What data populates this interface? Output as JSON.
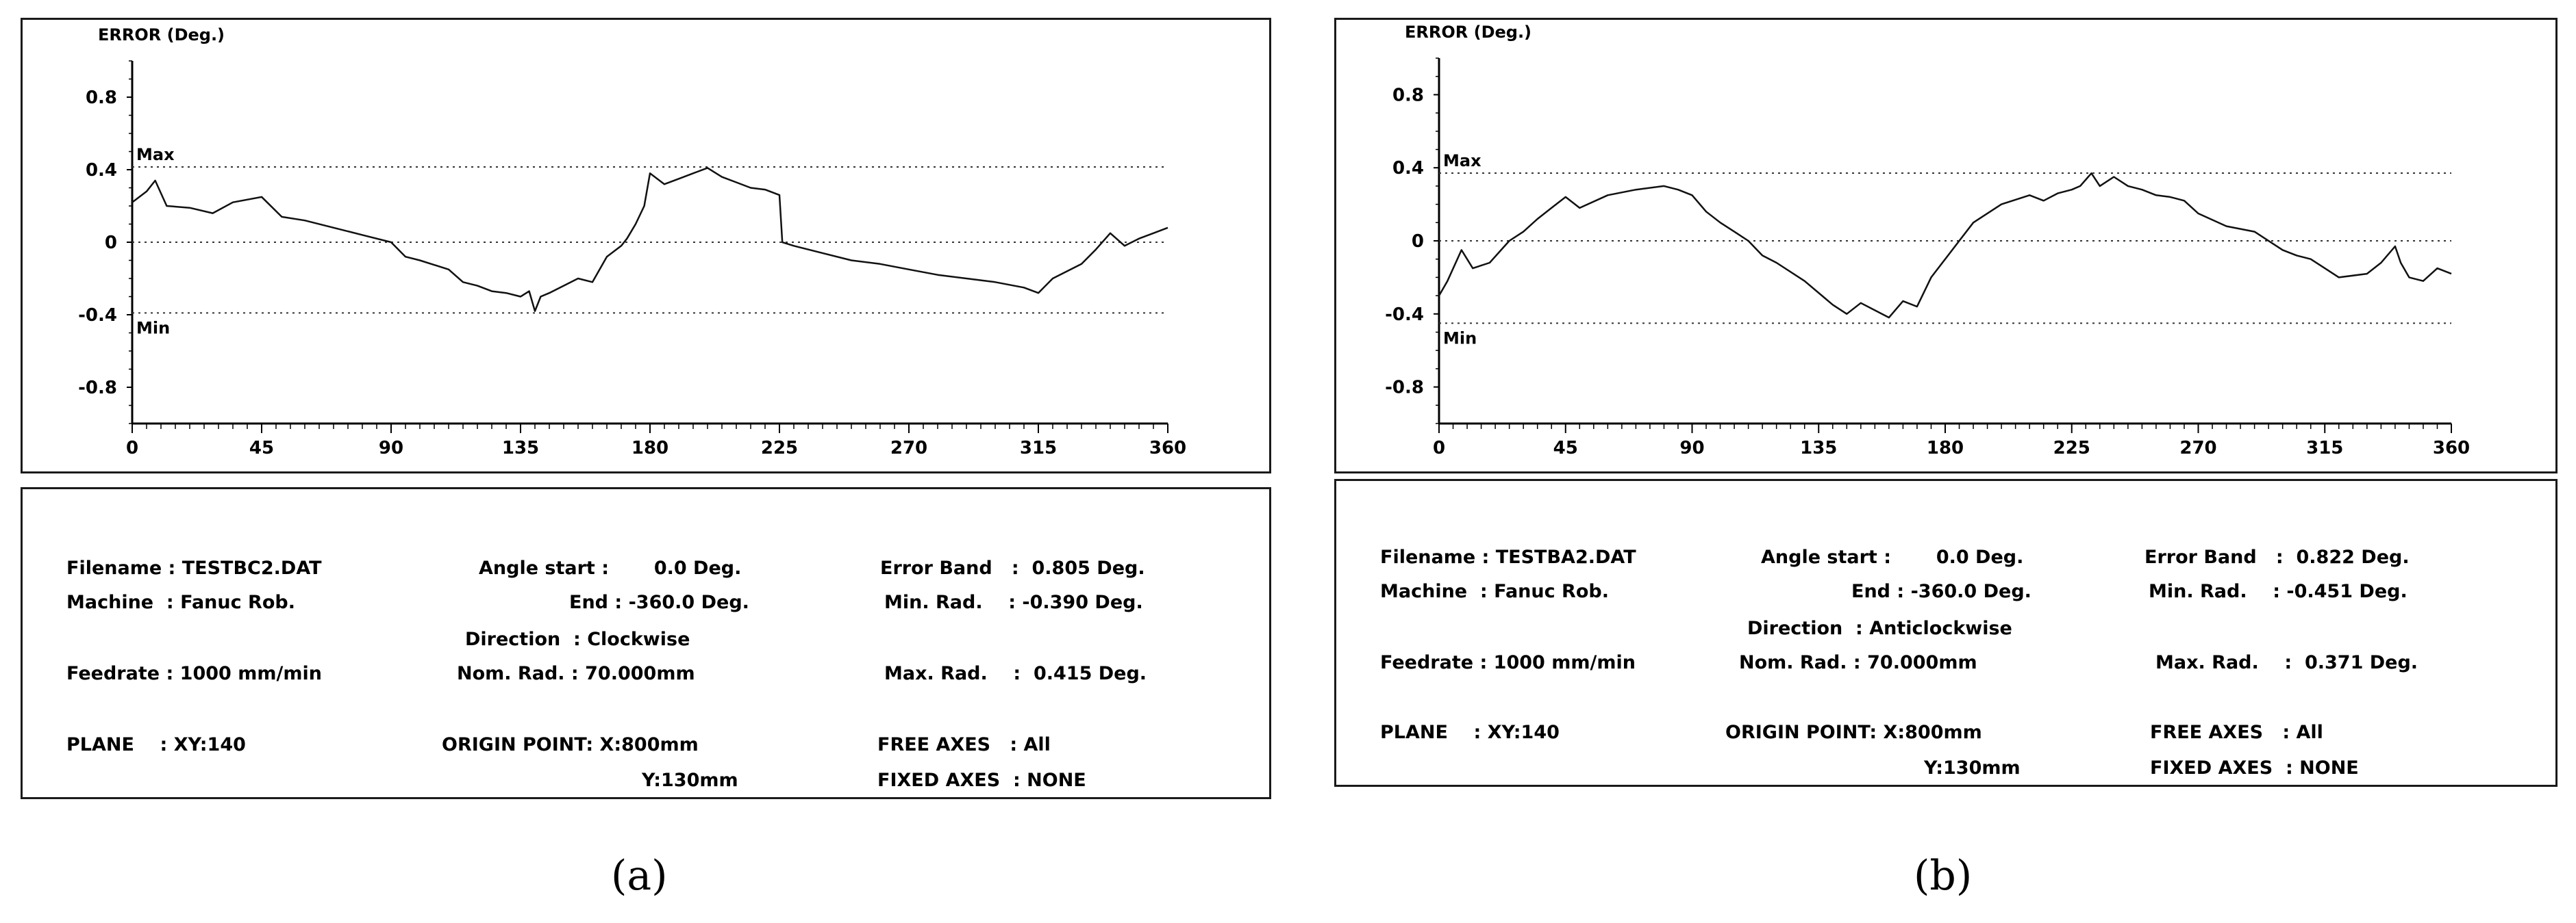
{
  "panels": [
    {
      "caption": "(a)",
      "chart_data": {
        "type": "line",
        "ylabel": "ERROR (Deg.)",
        "xlabel": "",
        "xlim": [
          0,
          360
        ],
        "ylim": [
          -1.0,
          1.0
        ],
        "yticks": [
          "0.8",
          "0.4",
          "0",
          "-0.4",
          "-0.8"
        ],
        "xticks": [
          "0",
          "45",
          "90",
          "135",
          "180",
          "225",
          "270",
          "315",
          "360"
        ],
        "max_label": "Max",
        "min_label": "Min",
        "max_line": 0.415,
        "min_line": -0.39,
        "series": [
          {
            "x": [
              0,
              5,
              8,
              12,
              20,
              28,
              35,
              45,
              52,
              60,
              70,
              80,
              90,
              95,
              100,
              110,
              115,
              120,
              125,
              130,
              135,
              138,
              140,
              142,
              145,
              150,
              155,
              160,
              165,
              170,
              172,
              175,
              178,
              180,
              185,
              190,
              195,
              200,
              205,
              210,
              215,
              220,
              225,
              226,
              230,
              240,
              250,
              260,
              270,
              280,
              290,
              300,
              310,
              315,
              320,
              330,
              335,
              340,
              345,
              350,
              355,
              360
            ],
            "y": [
              0.22,
              0.28,
              0.34,
              0.2,
              0.19,
              0.16,
              0.22,
              0.25,
              0.14,
              0.12,
              0.08,
              0.04,
              0.0,
              -0.08,
              -0.1,
              -0.15,
              -0.22,
              -0.24,
              -0.27,
              -0.28,
              -0.3,
              -0.27,
              -0.38,
              -0.3,
              -0.28,
              -0.24,
              -0.2,
              -0.22,
              -0.08,
              -0.02,
              0.02,
              0.1,
              0.2,
              0.38,
              0.32,
              0.35,
              0.38,
              0.41,
              0.36,
              0.33,
              0.3,
              0.29,
              0.26,
              0.0,
              -0.02,
              -0.06,
              -0.1,
              -0.12,
              -0.15,
              -0.18,
              -0.2,
              -0.22,
              -0.25,
              -0.28,
              -0.2,
              -0.12,
              -0.04,
              0.05,
              -0.02,
              0.02,
              0.05,
              0.08
            ]
          }
        ]
      },
      "info": {
        "filename": "Filename : TESTBC2.DAT",
        "machine": "Machine  : Fanuc Rob.",
        "feedrate": "Feedrate : 1000 mm/min",
        "plane": "PLANE    : XY:140",
        "angle_start": "Angle start :       0.0 Deg.",
        "end": "End : -360.0 Deg.",
        "direction": "Direction  : Clockwise",
        "nom_rad": "Nom. Rad. : 70.000mm",
        "origin_point": "ORIGIN POINT: X:800mm",
        "origin_y": "Y:130mm",
        "error_band": "Error Band   :  0.805 Deg.",
        "min_rad": "Min. Rad.    : -0.390 Deg.",
        "max_rad": "Max. Rad.    :  0.415 Deg.",
        "free_axes": "FREE AXES   : All",
        "fixed_axes": "FIXED AXES  : NONE"
      }
    },
    {
      "caption": "(b)",
      "chart_data": {
        "type": "line",
        "ylabel": "ERROR (Deg.)",
        "xlabel": "",
        "xlim": [
          0,
          360
        ],
        "ylim": [
          -1.0,
          1.0
        ],
        "yticks": [
          "0.8",
          "0.4",
          "0",
          "-0.4",
          "-0.8"
        ],
        "xticks": [
          "0",
          "45",
          "90",
          "135",
          "180",
          "225",
          "270",
          "315",
          "360"
        ],
        "max_label": "Max",
        "min_label": "Min",
        "max_line": 0.371,
        "min_line": -0.451,
        "series": [
          {
            "x": [
              0,
              3,
              8,
              12,
              18,
              25,
              30,
              35,
              40,
              45,
              50,
              60,
              70,
              80,
              85,
              90,
              95,
              100,
              105,
              110,
              115,
              120,
              130,
              140,
              145,
              150,
              155,
              160,
              165,
              170,
              175,
              180,
              185,
              190,
              200,
              210,
              215,
              220,
              225,
              228,
              232,
              235,
              240,
              245,
              250,
              255,
              260,
              265,
              270,
              280,
              290,
              300,
              305,
              310,
              315,
              320,
              330,
              335,
              340,
              342,
              345,
              350,
              355,
              360
            ],
            "y": [
              -0.3,
              -0.22,
              -0.05,
              -0.15,
              -0.12,
              0.0,
              0.05,
              0.12,
              0.18,
              0.24,
              0.18,
              0.25,
              0.28,
              0.3,
              0.28,
              0.25,
              0.16,
              0.1,
              0.05,
              0.0,
              -0.08,
              -0.12,
              -0.22,
              -0.35,
              -0.4,
              -0.34,
              -0.38,
              -0.42,
              -0.33,
              -0.36,
              -0.2,
              -0.1,
              0.0,
              0.1,
              0.2,
              0.25,
              0.22,
              0.26,
              0.28,
              0.3,
              0.37,
              0.3,
              0.35,
              0.3,
              0.28,
              0.25,
              0.24,
              0.22,
              0.15,
              0.08,
              0.05,
              -0.05,
              -0.08,
              -0.1,
              -0.15,
              -0.2,
              -0.18,
              -0.12,
              -0.03,
              -0.12,
              -0.2,
              -0.22,
              -0.15,
              -0.18
            ]
          }
        ]
      },
      "info": {
        "filename": "Filename : TESTBA2.DAT",
        "machine": "Machine  : Fanuc Rob.",
        "feedrate": "Feedrate : 1000 mm/min",
        "plane": "PLANE    : XY:140",
        "angle_start": "Angle start :       0.0 Deg.",
        "end": "End : -360.0 Deg.",
        "direction": "Direction  : Anticlockwise",
        "nom_rad": "Nom. Rad. : 70.000mm",
        "origin_point": "ORIGIN POINT: X:800mm",
        "origin_y": "Y:130mm",
        "error_band": "Error Band   :  0.822 Deg.",
        "min_rad": "Min. Rad.    : -0.451 Deg.",
        "max_rad": "Max. Rad.    :  0.371 Deg.",
        "free_axes": "FREE AXES   : All",
        "fixed_axes": "FIXED AXES  : NONE"
      }
    }
  ]
}
